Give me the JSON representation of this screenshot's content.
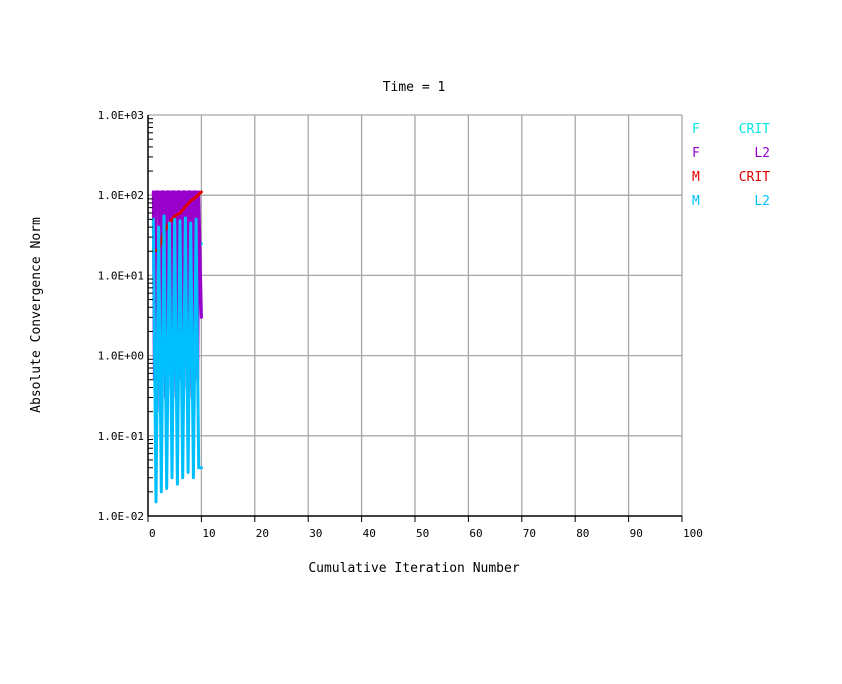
{
  "chart_data": {
    "type": "line",
    "title": "Time = 1",
    "xlabel": "Cumulative Iteration Number",
    "ylabel": "Absolute Convergence Norm",
    "xlim": [
      0,
      100
    ],
    "ylim": [
      0.01,
      1000
    ],
    "yscale": "log",
    "grid": true,
    "legend_position": "right",
    "x_ticks": [
      "0",
      "10",
      "20",
      "30",
      "40",
      "50",
      "60",
      "70",
      "80",
      "90",
      "100"
    ],
    "y_ticks": [
      "1.0E-02",
      "1.0E-01",
      "1.0E+00",
      "1.0E+01",
      "1.0E+02",
      "1.0E+03"
    ],
    "series": [
      {
        "legend_letter": "F",
        "legend_label": "CRIT",
        "color": "#00e5e5",
        "x": [
          1,
          2,
          3,
          4,
          5,
          6,
          7,
          8,
          9,
          10
        ],
        "y": [
          5.0,
          6.0,
          8.0,
          10.0,
          12.0,
          14.0,
          16.0,
          18.0,
          21.0,
          25.0
        ]
      },
      {
        "legend_letter": "F",
        "legend_label": "L2",
        "color": "#9900cc",
        "x": [
          1,
          1.2,
          1.5,
          2,
          2.3,
          2.5,
          3,
          3.3,
          3.5,
          4,
          4.3,
          4.5,
          5,
          5.3,
          5.5,
          6,
          6.3,
          6.5,
          7,
          7.3,
          7.5,
          8,
          8.3,
          8.5,
          9,
          9.3,
          9.5,
          10
        ],
        "y": [
          110,
          0.5,
          110,
          110,
          0.2,
          110,
          110,
          0.3,
          110,
          110,
          0.4,
          110,
          110,
          0.3,
          110,
          110,
          0.5,
          110,
          110,
          0.4,
          110,
          110,
          0.3,
          110,
          110,
          0.5,
          110,
          3.0
        ]
      },
      {
        "legend_letter": "M",
        "legend_label": "CRIT",
        "color": "#e00000",
        "x": [
          1,
          2,
          3,
          4,
          5,
          6,
          7,
          8,
          9,
          10
        ],
        "y": [
          20,
          21,
          35,
          45,
          55,
          60,
          72,
          85,
          95,
          110
        ]
      },
      {
        "legend_letter": "M",
        "legend_label": "L2",
        "color": "#00bfff",
        "x": [
          1,
          1.5,
          2,
          2.5,
          3,
          3.5,
          4,
          4.5,
          5,
          5.5,
          6,
          6.5,
          7,
          7.5,
          8,
          8.5,
          9,
          9.5,
          10
        ],
        "y": [
          50,
          0.015,
          40,
          0.02,
          55,
          0.022,
          45,
          0.03,
          50,
          0.025,
          48,
          0.03,
          52,
          0.035,
          45,
          0.03,
          50,
          0.04,
          0.04
        ]
      }
    ]
  }
}
